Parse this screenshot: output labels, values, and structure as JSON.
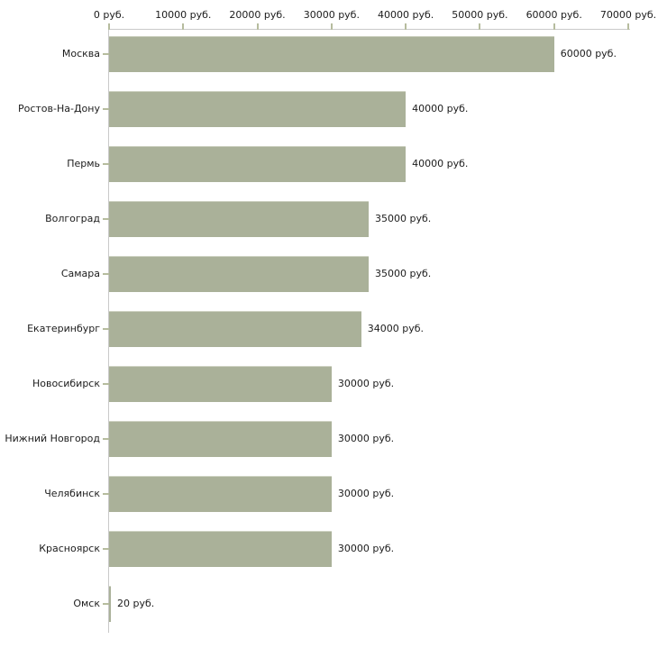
{
  "chart_data": {
    "type": "bar",
    "orientation": "horizontal",
    "currency_suffix": "руб.",
    "categories": [
      "Москва",
      "Ростов-На-Дону",
      "Пермь",
      "Волгоград",
      "Самара",
      "Екатеринбург",
      "Новосибирск",
      "Нижний Новгород",
      "Челябинск",
      "Красноярск",
      "Омск"
    ],
    "values": [
      60000,
      40000,
      40000,
      35000,
      35000,
      34000,
      30000,
      30000,
      30000,
      30000,
      20
    ],
    "value_labels": [
      "60000 руб.",
      "40000 руб.",
      "40000 руб.",
      "35000 руб.",
      "35000 руб.",
      "34000 руб.",
      "30000 руб.",
      "30000 руб.",
      "30000 руб.",
      "30000 руб.",
      "20 руб."
    ],
    "x_ticks": [
      {
        "value": 0,
        "label": "0 руб."
      },
      {
        "value": 10000,
        "label": "10000 руб."
      },
      {
        "value": 20000,
        "label": "20000 руб."
      },
      {
        "value": 30000,
        "label": "30000 руб."
      },
      {
        "value": 40000,
        "label": "40000 руб."
      },
      {
        "value": 50000,
        "label": "50000 руб."
      },
      {
        "value": 60000,
        "label": "60000 руб."
      },
      {
        "value": 70000,
        "label": "70000 руб."
      }
    ],
    "xlim": [
      0,
      70000
    ],
    "title": "",
    "xlabel": "",
    "ylabel": "",
    "grid": false,
    "legend": "none",
    "colors": {
      "bar": "#aab199",
      "bar_edge": "#ced2c2",
      "axis": "#c9c9c9",
      "tick": "#b6bc9e",
      "text": "#1c1c1c",
      "background": "#ffffff"
    }
  }
}
